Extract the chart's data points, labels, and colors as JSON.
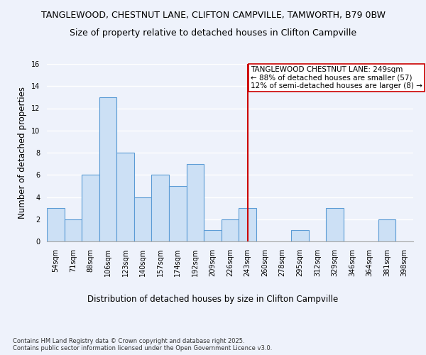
{
  "title1": "TANGLEWOOD, CHESTNUT LANE, CLIFTON CAMPVILLE, TAMWORTH, B79 0BW",
  "title2": "Size of property relative to detached houses in Clifton Campville",
  "xlabel": "Distribution of detached houses by size in Clifton Campville",
  "ylabel": "Number of detached properties",
  "footnote": "Contains HM Land Registry data © Crown copyright and database right 2025.\nContains public sector information licensed under the Open Government Licence v3.0.",
  "categories": [
    "54sqm",
    "71sqm",
    "88sqm",
    "106sqm",
    "123sqm",
    "140sqm",
    "157sqm",
    "174sqm",
    "192sqm",
    "209sqm",
    "226sqm",
    "243sqm",
    "260sqm",
    "278sqm",
    "295sqm",
    "312sqm",
    "329sqm",
    "346sqm",
    "364sqm",
    "381sqm",
    "398sqm"
  ],
  "values": [
    3,
    2,
    6,
    13,
    8,
    4,
    6,
    5,
    7,
    1,
    2,
    3,
    0,
    0,
    1,
    0,
    3,
    0,
    0,
    2,
    0
  ],
  "bar_color": "#cce0f5",
  "bar_edge_color": "#5b9bd5",
  "vline_x_index": 11,
  "vline_color": "#cc0000",
  "annotation_text": "TANGLEWOOD CHESTNUT LANE: 249sqm\n← 88% of detached houses are smaller (57)\n12% of semi-detached houses are larger (8) →",
  "annotation_box_color": "#ffffff",
  "annotation_box_edge": "#cc0000",
  "ylim": [
    0,
    16
  ],
  "yticks": [
    0,
    2,
    4,
    6,
    8,
    10,
    12,
    14,
    16
  ],
  "background_color": "#eef2fb",
  "plot_background": "#eef2fb",
  "grid_color": "#ffffff",
  "title1_fontsize": 9,
  "title2_fontsize": 9,
  "xlabel_fontsize": 8.5,
  "ylabel_fontsize": 8.5,
  "tick_fontsize": 7,
  "annotation_fontsize": 7.5,
  "footnote_fontsize": 6
}
